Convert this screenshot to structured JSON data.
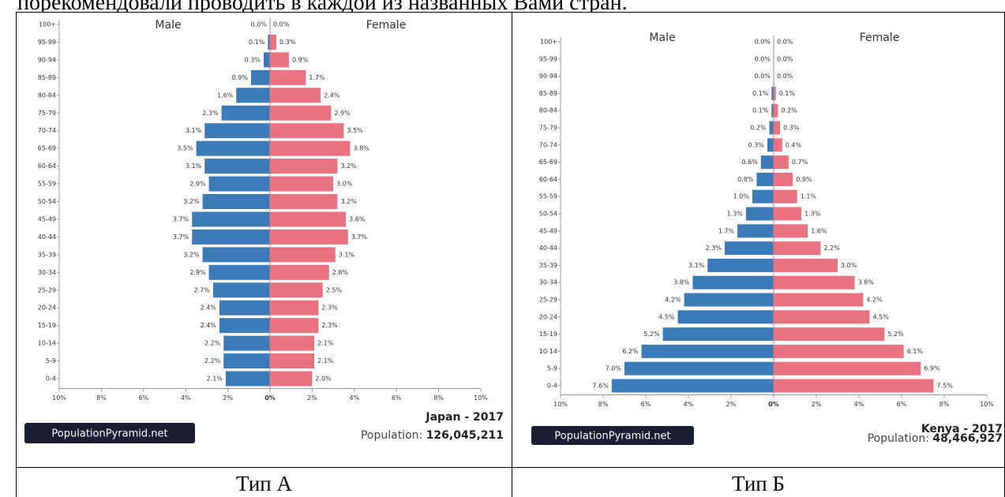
{
  "top_text": "порекомендовали проводить в каждой из названных Вами стран.",
  "captions": [
    "Тип А",
    "Тип Б"
  ],
  "colors": {
    "male": "#3d7ab8",
    "female": "#e8727f",
    "logo_bg": "#1b1d33",
    "logo_text": "#ffffff"
  },
  "chart_data": [
    {
      "type": "bar",
      "orientation": "horizontal-pyramid",
      "title": "Japan - 2017",
      "population_label": "Population:",
      "population_value": "126,045,211",
      "logo": "PopulationPyramid.net",
      "male_label": "Male",
      "female_label": "Female",
      "xticks": [
        "10%",
        "8%",
        "6%",
        "4%",
        "2%",
        "0%",
        "2%",
        "4%",
        "6%",
        "8%",
        "10%"
      ],
      "xlim": [
        -10,
        10
      ],
      "categories": [
        "100+",
        "95-99",
        "90-94",
        "85-89",
        "80-84",
        "75-79",
        "70-74",
        "65-69",
        "60-64",
        "55-59",
        "50-54",
        "45-49",
        "40-44",
        "35-39",
        "30-34",
        "25-29",
        "20-24",
        "15-19",
        "10-14",
        "5-9",
        "0-4"
      ],
      "series": [
        {
          "name": "Male",
          "values": [
            0.0,
            0.1,
            0.3,
            0.9,
            1.6,
            2.3,
            3.1,
            3.5,
            3.1,
            2.9,
            3.2,
            3.7,
            3.7,
            3.2,
            2.9,
            2.7,
            2.4,
            2.4,
            2.2,
            2.2,
            2.1
          ]
        },
        {
          "name": "Female",
          "values": [
            0.0,
            0.3,
            0.9,
            1.7,
            2.4,
            2.9,
            3.5,
            3.8,
            3.2,
            3.0,
            3.2,
            3.6,
            3.7,
            3.1,
            2.8,
            2.5,
            2.3,
            2.3,
            2.1,
            2.1,
            2.0
          ]
        }
      ],
      "bar_labels": {
        "male": [
          "0.0%",
          "0.1%",
          "0.3%",
          "0.9%",
          "1.6%",
          "2.3%",
          "3.1%",
          "3.5%",
          "3.1%",
          "2.9%",
          "3.2%",
          "3.7%",
          "3.7%",
          "3.2%",
          "2.9%",
          "2.7%",
          "2.4%",
          "2.4%",
          "2.2%",
          "2.2%",
          "2.1%"
        ],
        "female": [
          "0.0%",
          "0.3%",
          "0.9%",
          "1.7%",
          "2.4%",
          "2.9%",
          "3.5%",
          "3.8%",
          "3.2%",
          "3.0%",
          "3.2%",
          "3.6%",
          "3.7%",
          "3.1%",
          "2.8%",
          "2.5%",
          "2.3%",
          "2.3%",
          "2.1%",
          "2.1%",
          "2.0%"
        ]
      }
    },
    {
      "type": "bar",
      "orientation": "horizontal-pyramid",
      "title": "Kenya - 2017",
      "population_label": "Population:",
      "population_value": "48,466,927",
      "logo": "PopulationPyramid.net",
      "male_label": "Male",
      "female_label": "Female",
      "xticks": [
        "10%",
        "8%",
        "6%",
        "4%",
        "2%",
        "0%",
        "2%",
        "4%",
        "6%",
        "8%",
        "10%"
      ],
      "xlim": [
        -10,
        10
      ],
      "categories": [
        "100+",
        "95-99",
        "90-94",
        "85-89",
        "80-84",
        "75-79",
        "70-74",
        "65-69",
        "60-64",
        "55-59",
        "50-54",
        "45-49",
        "40-44",
        "35-39",
        "30-34",
        "25-29",
        "20-24",
        "15-19",
        "10-14",
        "5-9",
        "0-4"
      ],
      "series": [
        {
          "name": "Male",
          "values": [
            0.0,
            0.0,
            0.0,
            0.1,
            0.1,
            0.2,
            0.3,
            0.6,
            0.8,
            1.0,
            1.3,
            1.7,
            2.3,
            3.1,
            3.8,
            4.2,
            4.5,
            5.2,
            6.2,
            7.0,
            7.6
          ]
        },
        {
          "name": "Female",
          "values": [
            0.0,
            0.0,
            0.0,
            0.1,
            0.2,
            0.3,
            0.4,
            0.7,
            0.9,
            1.1,
            1.3,
            1.6,
            2.2,
            3.0,
            3.8,
            4.2,
            4.5,
            5.2,
            6.1,
            6.9,
            7.5
          ]
        }
      ],
      "bar_labels": {
        "male": [
          "0.0%",
          "0.0%",
          "0.0%",
          "0.1%",
          "0.1%",
          "0.2%",
          "0.3%",
          "0.6%",
          "0.8%",
          "1.0%",
          "1.3%",
          "1.7%",
          "2.3%",
          "3.1%",
          "3.8%",
          "4.2%",
          "4.5%",
          "5.2%",
          "6.2%",
          "7.0%",
          "7.6%"
        ],
        "female": [
          "0.0%",
          "0.0%",
          "0.0%",
          "0.1%",
          "0.2%",
          "0.3%",
          "0.4%",
          "0.7%",
          "0.9%",
          "1.1%",
          "1.3%",
          "1.6%",
          "2.2%",
          "3.0%",
          "3.8%",
          "4.2%",
          "4.5%",
          "5.2%",
          "6.1%",
          "6.9%",
          "7.5%"
        ]
      }
    }
  ]
}
